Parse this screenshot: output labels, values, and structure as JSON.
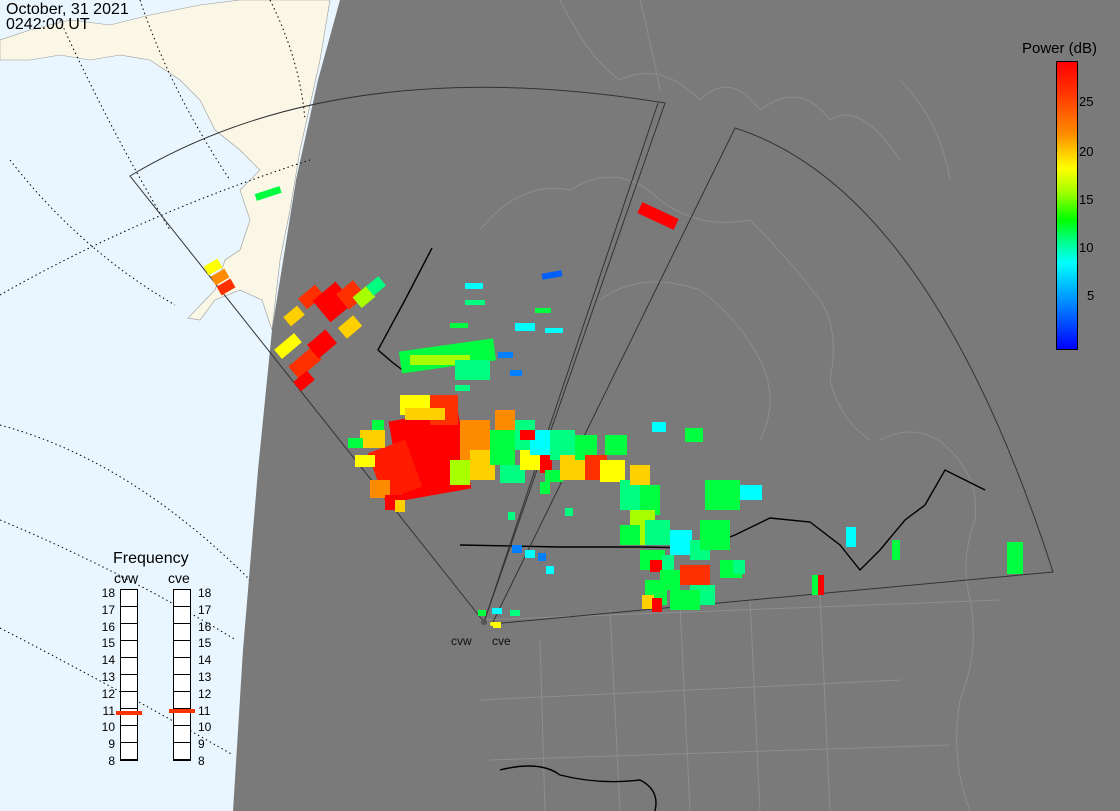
{
  "header": {
    "date": "October, 31 2021",
    "time": "0242:00 UT"
  },
  "legend": {
    "title": "Power (dB)",
    "ticks": [
      "25",
      "20",
      "15",
      "10",
      "5"
    ],
    "colors": [
      "#0000ff",
      "#0080ff",
      "#00ffff",
      "#00ff80",
      "#00ff00",
      "#a8ff00",
      "#ffff00",
      "#ffd000",
      "#ff8c00",
      "#ff3000",
      "#ff0000"
    ]
  },
  "frequency": {
    "title": "Frequency",
    "radars": [
      "cvw",
      "cve"
    ],
    "scale": [
      "18",
      "17",
      "16",
      "15",
      "14",
      "13",
      "12",
      "11",
      "10",
      "9",
      "8"
    ],
    "selected_mhz": {
      "cvw": 10.7,
      "cve": 10.8
    }
  },
  "sites": [
    "cvw",
    "cve"
  ],
  "map": {
    "background_color": "#e9f6ff",
    "night_color": "#7a7a7a",
    "land_color": "#fbf7e6"
  }
}
